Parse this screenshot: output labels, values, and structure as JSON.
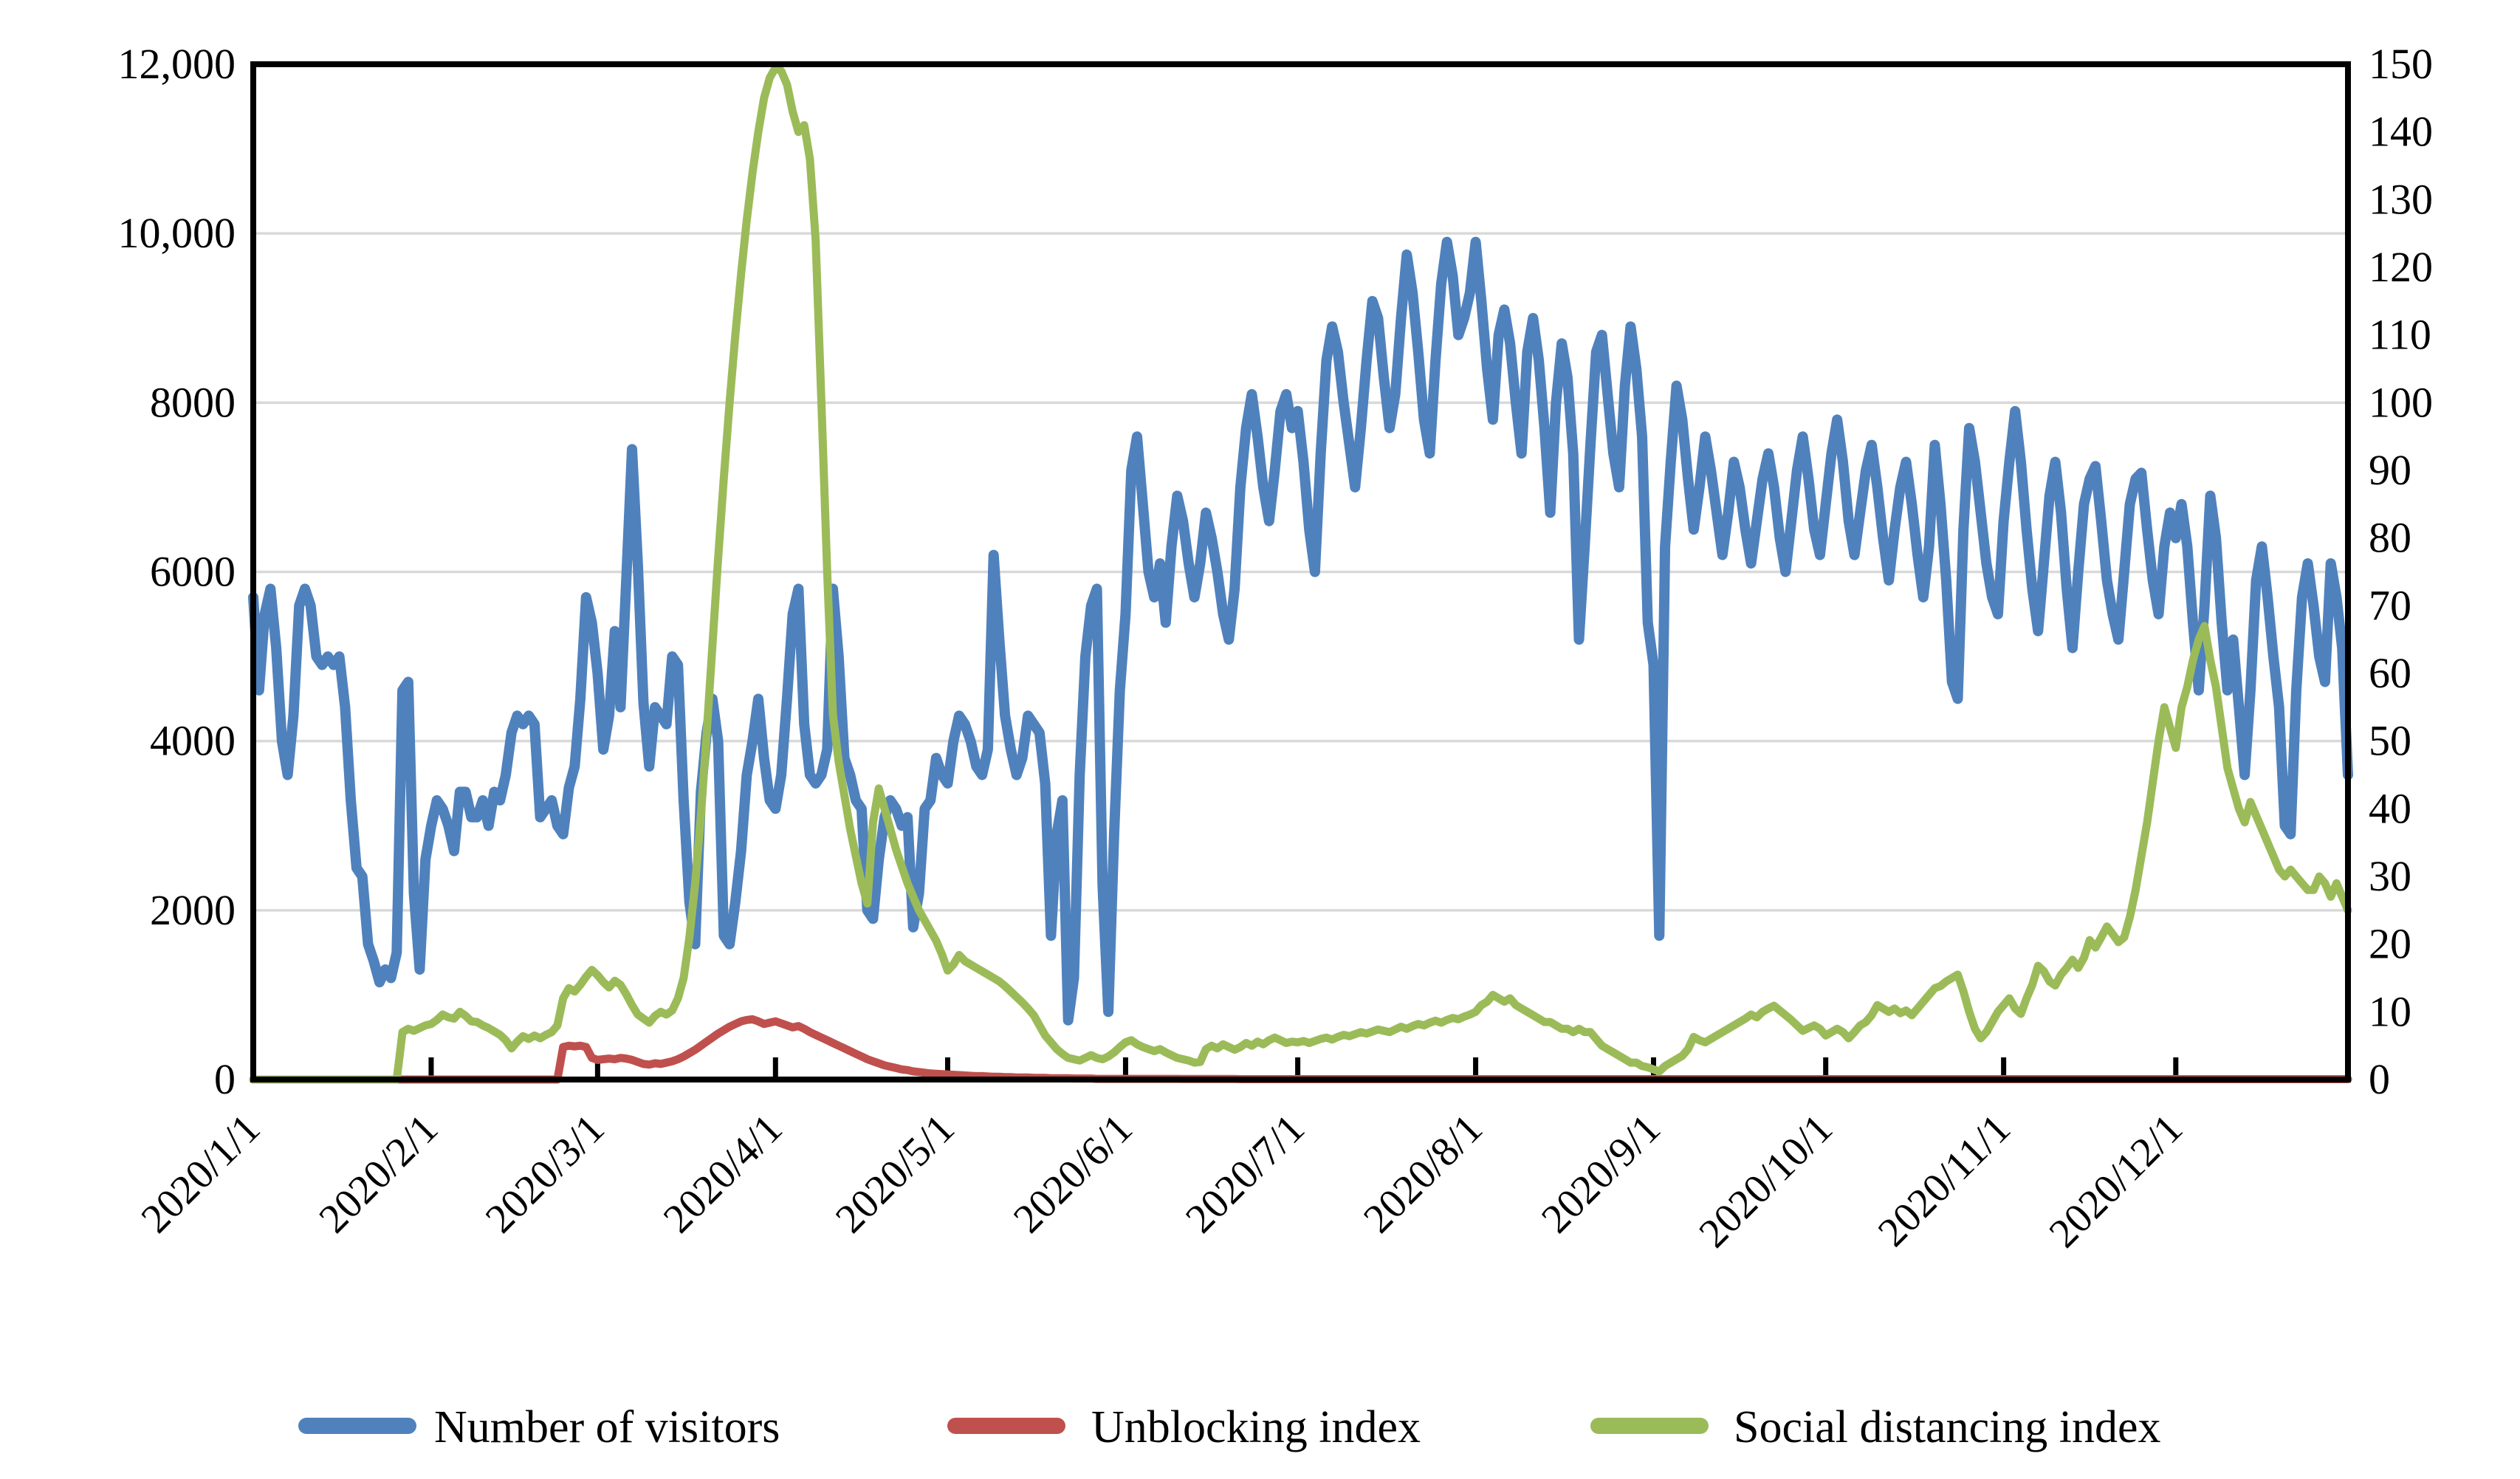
{
  "chart_data": {
    "type": "line",
    "title": "",
    "grid": "horizontal-on",
    "legend_position": "bottom-center",
    "x_axis": {
      "tick_labels": [
        "2020/1/1",
        "2020/2/1",
        "2020/3/1",
        "2020/4/1",
        "2020/5/1",
        "2020/6/1",
        "2020/7/1",
        "2020/8/1",
        "2020/9/1",
        "2020/10/1",
        "2020/11/1",
        "2020/12/1"
      ],
      "tick_day_index": [
        0,
        31,
        60,
        91,
        121,
        152,
        182,
        213,
        244,
        274,
        305,
        335
      ],
      "total_days": 366,
      "label_rotation_deg": 45
    },
    "left_axis": {
      "labels": [
        "0",
        "2000",
        "4000",
        "6000",
        "8000",
        "10,000",
        "12,000"
      ],
      "values": [
        0,
        2000,
        4000,
        6000,
        8000,
        10000,
        12000
      ],
      "range": [
        0,
        12000
      ],
      "series_name": "Number of visitors"
    },
    "right_axis": {
      "labels": [
        "0",
        "10",
        "20",
        "30",
        "40",
        "50",
        "60",
        "70",
        "80",
        "90",
        "100",
        "110",
        "120",
        "130",
        "140",
        "150"
      ],
      "values": [
        0,
        10,
        20,
        30,
        40,
        50,
        60,
        70,
        80,
        90,
        100,
        110,
        120,
        130,
        140,
        150
      ],
      "range": [
        0,
        150
      ]
    },
    "colors": {
      "visitors": "#4F81BD",
      "unblocking": "#C0504D",
      "social_distancing": "#9BBB59",
      "gridline": "#D9D9D9",
      "axis": "#000000"
    },
    "series": [
      {
        "name": "Number of visitors",
        "axis": "left",
        "color": "#4F81BD",
        "stroke_width": 14,
        "values": [
          5700,
          4600,
          5500,
          5800,
          5100,
          4000,
          3600,
          4300,
          5600,
          5800,
          5600,
          5000,
          4900,
          5000,
          4900,
          5000,
          4400,
          3300,
          2500,
          2400,
          1600,
          1400,
          1150,
          1300,
          1200,
          1500,
          4600,
          4700,
          2200,
          1300,
          2600,
          3000,
          3300,
          3200,
          3000,
          2700,
          3400,
          3400,
          3100,
          3100,
          3300,
          3000,
          3400,
          3300,
          3600,
          4100,
          4300,
          4200,
          4300,
          4200,
          3100,
          3200,
          3300,
          3000,
          2900,
          3450,
          3700,
          4500,
          5700,
          5400,
          4800,
          3900,
          4300,
          5300,
          4400,
          5900,
          7450,
          6100,
          4450,
          3700,
          4400,
          4300,
          4200,
          5000,
          4900,
          3300,
          2100,
          1600,
          3400,
          4100,
          4500,
          4000,
          1700,
          1600,
          2100,
          2700,
          3600,
          4000,
          4500,
          3800,
          3300,
          3200,
          3600,
          4500,
          5500,
          5800,
          4200,
          3600,
          3500,
          3600,
          3900,
          5800,
          5000,
          3800,
          3600,
          3300,
          3200,
          2000,
          1900,
          2600,
          3100,
          3300,
          3200,
          3000,
          3100,
          1800,
          2200,
          3200,
          3300,
          3800,
          3600,
          3500,
          4000,
          4300,
          4200,
          4000,
          3700,
          3600,
          3900,
          6200,
          5200,
          4300,
          3900,
          3600,
          3800,
          4300,
          4200,
          4100,
          3500,
          1700,
          2900,
          3300,
          700,
          1200,
          3600,
          5000,
          5600,
          5800,
          2300,
          800,
          2900,
          4600,
          5500,
          7200,
          7600,
          6800,
          6000,
          5700,
          6100,
          5400,
          6300,
          6900,
          6600,
          6100,
          5700,
          6100,
          6700,
          6400,
          6000,
          5500,
          5200,
          5800,
          7000,
          7700,
          8100,
          7600,
          7000,
          6600,
          7200,
          7900,
          8100,
          7700,
          7900,
          7300,
          6500,
          6000,
          7400,
          8500,
          8900,
          8600,
          8000,
          7500,
          7000,
          7700,
          8500,
          9200,
          9000,
          8300,
          7700,
          8100,
          9000,
          9750,
          9300,
          8600,
          7800,
          7400,
          8500,
          9400,
          9900,
          9500,
          8800,
          9000,
          9300,
          9900,
          9200,
          8400,
          7800,
          8800,
          9100,
          8700,
          8000,
          7400,
          8600,
          9000,
          8500,
          7700,
          6700,
          8000,
          8700,
          8300,
          7400,
          5200,
          6300,
          7500,
          8600,
          8800,
          8100,
          7400,
          7000,
          8200,
          8900,
          8400,
          7600,
          5400,
          4900,
          1700,
          6300,
          7300,
          8200,
          7800,
          7100,
          6500,
          7000,
          7600,
          7200,
          6700,
          6200,
          6700,
          7300,
          7000,
          6500,
          6100,
          6600,
          7100,
          7400,
          7000,
          6400,
          6000,
          6600,
          7200,
          7600,
          7100,
          6500,
          6200,
          6800,
          7400,
          7800,
          7300,
          6600,
          6200,
          6700,
          7200,
          7500,
          7000,
          6400,
          5900,
          6500,
          7000,
          7300,
          6800,
          6200,
          5700,
          6300,
          7500,
          6800,
          5900,
          4700,
          4500,
          6500,
          7700,
          7300,
          6700,
          6100,
          5700,
          5500,
          6600,
          7300,
          7900,
          7300,
          6500,
          5800,
          5300,
          6100,
          6900,
          7300,
          6700,
          5800,
          5100,
          6000,
          6800,
          7100,
          7250,
          6600,
          5900,
          5500,
          5200,
          6000,
          6800,
          7100,
          7170,
          6500,
          5900,
          5500,
          6300,
          6700,
          6400,
          6800,
          6300,
          5400,
          4600,
          5600,
          6900,
          6400,
          5400,
          4600,
          5200,
          4400,
          3600,
          4600,
          5900,
          6300,
          5700,
          5000,
          4400,
          3000,
          2900,
          4600,
          5700,
          6100,
          5600,
          5000,
          4700,
          6100,
          5700,
          5100,
          3600
        ]
      },
      {
        "name": "Unblocking index",
        "axis": "right",
        "color": "#C0504D",
        "stroke_width": 11,
        "values": [
          0,
          0,
          0,
          0,
          0,
          0,
          0,
          0,
          0,
          0,
          0,
          0,
          0,
          0,
          0,
          0,
          0,
          0,
          0,
          0,
          0,
          0,
          0,
          0,
          0,
          0,
          0,
          0,
          0,
          0,
          0,
          0,
          0,
          0,
          0,
          0,
          0,
          0,
          0,
          0,
          0,
          0,
          0,
          0,
          0,
          0,
          0,
          0,
          0,
          0,
          0,
          0,
          0,
          0,
          4.8,
          5,
          4.9,
          5,
          4.8,
          3.2,
          2.9,
          3,
          3.1,
          3,
          3.2,
          3.1,
          2.9,
          2.6,
          2.3,
          2.2,
          2.4,
          2.3,
          2.5,
          2.7,
          3,
          3.4,
          3.9,
          4.4,
          5,
          5.6,
          6.2,
          6.8,
          7.3,
          7.8,
          8.2,
          8.6,
          8.8,
          8.9,
          8.6,
          8.2,
          8.4,
          8.6,
          8.3,
          8,
          7.7,
          7.9,
          7.5,
          7,
          6.6,
          6.2,
          5.8,
          5.4,
          5,
          4.6,
          4.2,
          3.8,
          3.4,
          3,
          2.7,
          2.4,
          2.1,
          1.9,
          1.7,
          1.5,
          1.4,
          1.2,
          1.1,
          1,
          0.9,
          0.85,
          0.8,
          0.75,
          0.7,
          0.65,
          0.6,
          0.55,
          0.5,
          0.5,
          0.45,
          0.4,
          0.4,
          0.35,
          0.35,
          0.3,
          0.3,
          0.3,
          0.25,
          0.25,
          0.25,
          0.2,
          0.2,
          0.2,
          0.2,
          0.15,
          0.15,
          0.15,
          0.15,
          0.1,
          0.1,
          0.1,
          0.1,
          0.1,
          0.1,
          0.1,
          0.1,
          0.1,
          0.1,
          0.1,
          0.1,
          0.1,
          0.1,
          0.1,
          0.08,
          0.08,
          0.08,
          0.08,
          0.08,
          0.08,
          0.08,
          0.08,
          0.08,
          0.08,
          0.05,
          0.05,
          0.05,
          0.05,
          0.05,
          0.05,
          0.05,
          0.05,
          0.05,
          0.05,
          0.05,
          0.05,
          0.05,
          0.05,
          0.05,
          0.05,
          0.05,
          0.05,
          0.05,
          0.05,
          0.05,
          0.05,
          0.05,
          0.05,
          0.05,
          0.05,
          0.05,
          0.05,
          0.05,
          0.05,
          0.05,
          0.05,
          0.05,
          0.05,
          0.05,
          0.05,
          0.05,
          0.05,
          0.05,
          0.05,
          0.05,
          0.05,
          0.05,
          0.05,
          0.05,
          0.05,
          0.05,
          0.05,
          0.05,
          0.05,
          0.05,
          0.05,
          0.05,
          0.05,
          0.05,
          0.05,
          0.05,
          0.05,
          0.05,
          0.05,
          0.05,
          0.05,
          0.05,
          0.05,
          0.05,
          0.05,
          0.05,
          0.05,
          0.05,
          0.05,
          0.05,
          0.05,
          0.05,
          0.05,
          0.05,
          0.05,
          0.05,
          0.05,
          0.05,
          0.05,
          0.05,
          0.05,
          0.05,
          0.05,
          0.05,
          0.05,
          0.05,
          0.05,
          0.05,
          0.05,
          0.05,
          0.05,
          0.05,
          0.05,
          0.05,
          0.05,
          0.05,
          0.05,
          0.05,
          0.05,
          0.05,
          0.05,
          0.05,
          0.05,
          0.05,
          0.05,
          0.05,
          0.05,
          0.05,
          0.05,
          0.05,
          0.05,
          0.05,
          0.05,
          0.05,
          0.05,
          0.05,
          0.05,
          0.05,
          0.05,
          0.05,
          0.05,
          0.05,
          0.05,
          0.05,
          0.05,
          0.05,
          0.05,
          0.05,
          0.05,
          0.05,
          0.05,
          0.05,
          0.05,
          0.05,
          0.05,
          0.05,
          0.05,
          0.05,
          0.05,
          0.05,
          0.05,
          0.05,
          0.05,
          0.05,
          0.05,
          0.05,
          0.05,
          0.05,
          0.05,
          0.05,
          0.05,
          0.05,
          0.05,
          0.05,
          0.05,
          0.05,
          0.05,
          0.05,
          0.05,
          0.05,
          0.05,
          0.05,
          0.05,
          0.05,
          0.05,
          0.05,
          0.05,
          0.05,
          0.05,
          0.05,
          0.05,
          0.05,
          0.05,
          0.05,
          0.05,
          0.05,
          0.05,
          0.05,
          0.05,
          0.05,
          0.05,
          0.05,
          0.05,
          0.05,
          0.05,
          0.05,
          0.05,
          0.05,
          0.05,
          0.05,
          0.05,
          0.05,
          0.05
        ]
      },
      {
        "name": "Social distancing index",
        "axis": "right",
        "color": "#9BBB59",
        "stroke_width": 11,
        "values": [
          0,
          0,
          0,
          0,
          0,
          0,
          0,
          0,
          0,
          0,
          0,
          0,
          0,
          0,
          0,
          0,
          0,
          0,
          0,
          0,
          0,
          0,
          0,
          0,
          0,
          0,
          7,
          7.5,
          7.2,
          7.6,
          8,
          8.2,
          8.8,
          9.6,
          9.2,
          9,
          10,
          9.4,
          8.6,
          8.5,
          8,
          7.6,
          7.1,
          6.6,
          5.8,
          4.6,
          5.6,
          6.4,
          6,
          6.5,
          6.1,
          6.6,
          7,
          8,
          12,
          13.5,
          13,
          14,
          15.2,
          16.2,
          15.4,
          14.4,
          13.6,
          14.6,
          14,
          12.6,
          11,
          9.6,
          9,
          8.4,
          9.4,
          10,
          9.6,
          10.2,
          12,
          15,
          21,
          29,
          39,
          51,
          64,
          77,
          89,
          100,
          110,
          119,
          127,
          134,
          140,
          145,
          148,
          149.5,
          149,
          147,
          143,
          140,
          141,
          136,
          124,
          100,
          75,
          54,
          47,
          42,
          37,
          33,
          29,
          26,
          38,
          43,
          40,
          37,
          34,
          31.5,
          29,
          27,
          25,
          23.5,
          22,
          20.5,
          18.5,
          16.1,
          17,
          18.4,
          17.5,
          17,
          16.5,
          16,
          15.5,
          15,
          14.5,
          13.8,
          13,
          12.2,
          11.4,
          10.5,
          9.5,
          8,
          6.5,
          5.5,
          4.5,
          3.8,
          3.2,
          3,
          2.8,
          3.2,
          3.6,
          3.2,
          3,
          3.4,
          4,
          4.8,
          5.5,
          5.8,
          5.2,
          4.8,
          4.5,
          4.2,
          4.5,
          4,
          3.6,
          3.2,
          3,
          2.8,
          2.5,
          2.6,
          4.5,
          5,
          4.6,
          5.2,
          4.8,
          4.4,
          4.8,
          5.4,
          5,
          5.6,
          5.2,
          5.8,
          6.2,
          5.8,
          5.4,
          5.6,
          5.5,
          5.7,
          5.4,
          5.7,
          6,
          6.2,
          5.9,
          6.3,
          6.6,
          6.4,
          6.7,
          7,
          6.8,
          7.1,
          7.4,
          7.2,
          7,
          7.4,
          7.8,
          7.5,
          7.9,
          8.2,
          8,
          8.4,
          8.7,
          8.4,
          8.8,
          9.1,
          8.9,
          9.3,
          9.6,
          10,
          11,
          11.5,
          12.5,
          12,
          11.5,
          12,
          11,
          10.5,
          10,
          9.5,
          9,
          8.5,
          8.5,
          8,
          7.5,
          7.5,
          7,
          7.5,
          7,
          7,
          6,
          5,
          4.5,
          4,
          3.5,
          3,
          2.5,
          2.5,
          2,
          1.8,
          1.5,
          1.2,
          2,
          2.5,
          3,
          3.5,
          4.5,
          6.3,
          5.8,
          5.5,
          6,
          6.5,
          7,
          7.5,
          8,
          8.5,
          9,
          9.6,
          9.2,
          10,
          10.5,
          10.9,
          10.2,
          9.5,
          8.8,
          8,
          7.2,
          7.6,
          8,
          7.5,
          6.5,
          7,
          7.5,
          7,
          6.1,
          7,
          8,
          8.5,
          9.5,
          11,
          10.5,
          10,
          10.5,
          9.8,
          10.2,
          9.5,
          10.5,
          11.5,
          12.5,
          13.5,
          13.8,
          14.5,
          15,
          15.5,
          13,
          10,
          7.5,
          6.1,
          7,
          8.5,
          10,
          11,
          12,
          10.5,
          9.7,
          12,
          14,
          16.8,
          16,
          14.5,
          13.9,
          15.5,
          16.5,
          17.7,
          16.5,
          18,
          20.6,
          19.5,
          21,
          22.6,
          21.5,
          20.3,
          21,
          24,
          28,
          33,
          38,
          44,
          50,
          55,
          52,
          49,
          55,
          58,
          62,
          65,
          67,
          62,
          58,
          52,
          46,
          43,
          40,
          38,
          41,
          39,
          37,
          35,
          33,
          31,
          30,
          31,
          30,
          29,
          28,
          28,
          30,
          29,
          27,
          29,
          27,
          25
        ]
      }
    ],
    "legend": [
      {
        "label": "Number of visitors",
        "color": "#4F81BD"
      },
      {
        "label": "Unblocking index",
        "color": "#C0504D"
      },
      {
        "label": "Social distancing index",
        "color": "#9BBB59"
      }
    ]
  }
}
